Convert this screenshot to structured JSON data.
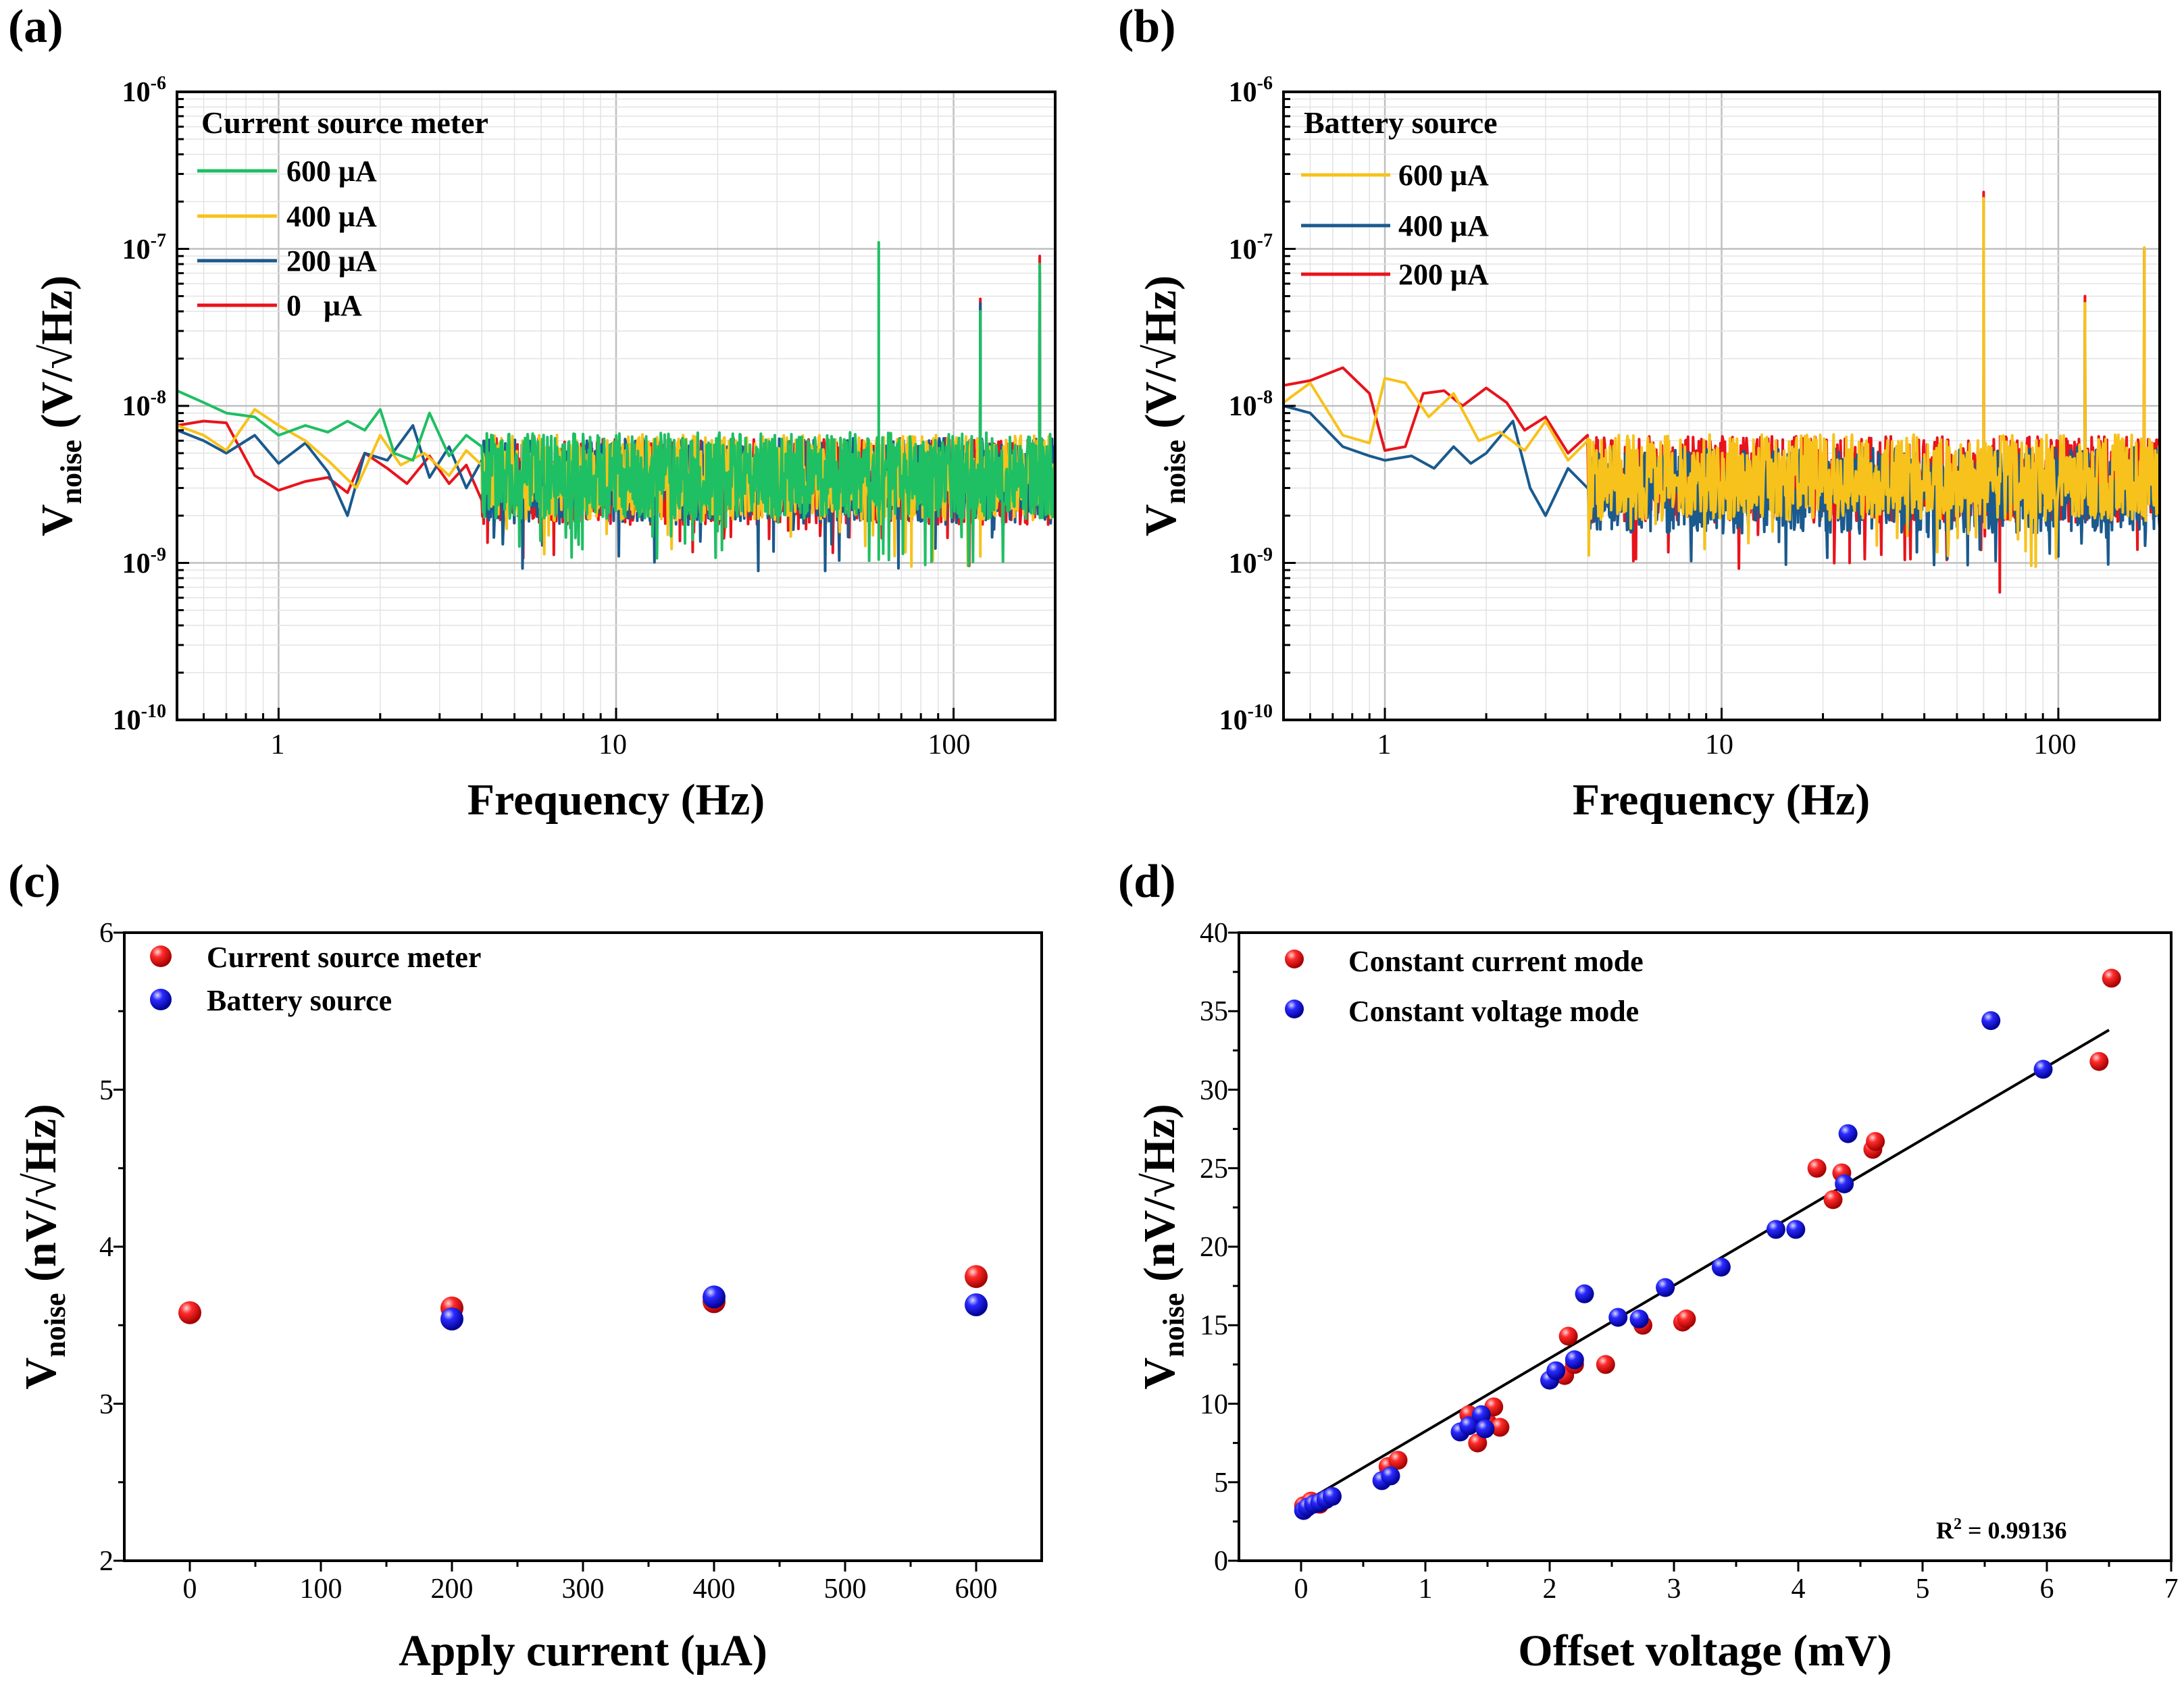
{
  "colors": {
    "green": "#1FBF63",
    "yellow": "#F7C21B",
    "blue": "#1A5A8E",
    "red": "#E8141C",
    "scatter_red": "#E8141C",
    "scatter_blue": "#1515E0",
    "grid_major": "#BFBFBF",
    "grid_minor": "#E3E3E3"
  },
  "chart_data": [
    {
      "id": "a",
      "panel_label": "(a)",
      "type": "line",
      "xscale": "log",
      "yscale": "log",
      "xlabel": "Frequency (Hz)",
      "ylabel": "V_noise (V/√Hz)",
      "ylabel_main": "V",
      "ylabel_sub": "noise",
      "ylabel_unit": " (V/√Hz)",
      "xlim": [
        0.5,
        200
      ],
      "ylim": [
        1e-10,
        1e-06
      ],
      "xticks": [
        1,
        10,
        100
      ],
      "xtick_labels": [
        "1",
        "10",
        "100"
      ],
      "yticks": [
        1e-10,
        1e-09,
        1e-08,
        1e-07,
        1e-06
      ],
      "ytick_base": [
        "10",
        "10",
        "10",
        "10",
        "10"
      ],
      "ytick_exp": [
        "-10",
        "-9",
        "-8",
        "-7",
        "-6"
      ],
      "grid": true,
      "legend_title": "Current source meter",
      "legend_position": "top-left",
      "series": [
        {
          "name": "600 μA",
          "color": "#1FBF63",
          "mean": 3.6e-09,
          "low_freq": [
            [
              0.5,
              1.25e-08
            ],
            [
              0.6,
              1.05e-08
            ],
            [
              0.7,
              9e-09
            ],
            [
              0.85,
              8.5e-09
            ],
            [
              1.0,
              6.5e-09
            ],
            [
              1.2,
              7.5e-09
            ],
            [
              1.4,
              6.8e-09
            ],
            [
              1.6,
              8e-09
            ],
            [
              1.8,
              7e-09
            ],
            [
              2.0,
              9.5e-09
            ],
            [
              2.2,
              5e-09
            ],
            [
              2.5,
              4.5e-09
            ],
            [
              2.8,
              9e-09
            ],
            [
              3.2,
              4.8e-09
            ],
            [
              3.6,
              6.5e-09
            ],
            [
              4.0,
              5.5e-09
            ]
          ],
          "spikes": [
            [
              60,
              1.1e-07
            ],
            [
              60,
              1.05e-09
            ],
            [
              120,
              4e-08
            ],
            [
              180,
              8e-08
            ]
          ]
        },
        {
          "name": "400 μA",
          "color": "#F7C21B",
          "mean": 3.5e-09,
          "low_freq": [
            [
              0.5,
              7.5e-09
            ],
            [
              0.6,
              6.5e-09
            ],
            [
              0.7,
              5.2e-09
            ],
            [
              0.85,
              9.5e-09
            ],
            [
              1.0,
              7.5e-09
            ],
            [
              1.2,
              6e-09
            ],
            [
              1.4,
              4.5e-09
            ],
            [
              1.7,
              3e-09
            ],
            [
              2.0,
              6.5e-09
            ],
            [
              2.3,
              4.2e-09
            ],
            [
              2.7,
              5e-09
            ],
            [
              3.2,
              3.6e-09
            ],
            [
              3.6,
              5.2e-09
            ],
            [
              4.0,
              4.2e-09
            ]
          ],
          "spikes": [
            [
              75,
              9.5e-10
            ],
            [
              120,
              1.1e-09
            ]
          ]
        },
        {
          "name": "200 μA",
          "color": "#1A5A8E",
          "mean": 3.3e-09,
          "low_freq": [
            [
              0.5,
              7e-09
            ],
            [
              0.6,
              6e-09
            ],
            [
              0.7,
              5e-09
            ],
            [
              0.85,
              6.5e-09
            ],
            [
              1.0,
              4.3e-09
            ],
            [
              1.2,
              5.8e-09
            ],
            [
              1.4,
              3.8e-09
            ],
            [
              1.6,
              2e-09
            ],
            [
              1.8,
              5e-09
            ],
            [
              2.1,
              4.5e-09
            ],
            [
              2.5,
              7.5e-09
            ],
            [
              2.8,
              3.5e-09
            ],
            [
              3.2,
              5.5e-09
            ],
            [
              3.6,
              3e-09
            ],
            [
              4.0,
              4.5e-09
            ]
          ],
          "spikes": [
            [
              120,
              4.5e-08
            ],
            [
              180,
              7e-08
            ]
          ]
        },
        {
          "name": "0   μA",
          "color": "#E8141C",
          "mean": 3.3e-09,
          "low_freq": [
            [
              0.5,
              7.5e-09
            ],
            [
              0.6,
              8e-09
            ],
            [
              0.7,
              7.8e-09
            ],
            [
              0.85,
              3.6e-09
            ],
            [
              1.0,
              2.9e-09
            ],
            [
              1.2,
              3.3e-09
            ],
            [
              1.4,
              3.5e-09
            ],
            [
              1.6,
              2.8e-09
            ],
            [
              1.8,
              5e-09
            ],
            [
              2.1,
              4e-09
            ],
            [
              2.4,
              3.2e-09
            ],
            [
              2.8,
              4.8e-09
            ],
            [
              3.2,
              3.2e-09
            ],
            [
              3.6,
              4.2e-09
            ],
            [
              4.0,
              2.5e-09
            ]
          ],
          "spikes": [
            [
              120,
              4.8e-08
            ],
            [
              180,
              9e-08
            ]
          ]
        }
      ]
    },
    {
      "id": "b",
      "panel_label": "(b)",
      "type": "line",
      "xscale": "log",
      "yscale": "log",
      "xlabel": "Frequency (Hz)",
      "ylabel": "V_noise (V/√Hz)",
      "ylabel_main": "V",
      "ylabel_sub": "noise",
      "ylabel_unit": " (V/√Hz)",
      "xlim": [
        0.5,
        200
      ],
      "ylim": [
        1e-10,
        1e-06
      ],
      "xticks": [
        1,
        10,
        100
      ],
      "xtick_labels": [
        "1",
        "10",
        "100"
      ],
      "yticks": [
        1e-10,
        1e-09,
        1e-08,
        1e-07,
        1e-06
      ],
      "ytick_base": [
        "10",
        "10",
        "10",
        "10",
        "10"
      ],
      "ytick_exp": [
        "-10",
        "-9",
        "-8",
        "-7",
        "-6"
      ],
      "grid": true,
      "legend_title": "Battery source",
      "legend_position": "top-left",
      "series": [
        {
          "name": "200 μA",
          "color": "#E8141C",
          "mean": 3.4e-09,
          "low_freq": [
            [
              0.5,
              1.35e-08
            ],
            [
              0.6,
              1.45e-08
            ],
            [
              0.75,
              1.75e-08
            ],
            [
              0.9,
              1.2e-08
            ],
            [
              1.0,
              5.2e-09
            ],
            [
              1.15,
              5.5e-09
            ],
            [
              1.3,
              1.2e-08
            ],
            [
              1.5,
              1.25e-08
            ],
            [
              1.7,
              1e-08
            ],
            [
              2.0,
              1.3e-08
            ],
            [
              2.3,
              1.05e-08
            ],
            [
              2.6,
              7e-09
            ],
            [
              3.0,
              8.5e-09
            ],
            [
              3.5,
              5e-09
            ],
            [
              4.0,
              6.5e-09
            ]
          ],
          "spikes": [
            [
              60,
              2.3e-07
            ],
            [
              120,
              5e-08
            ],
            [
              180,
              1e-07
            ],
            [
              24,
              1e-09
            ],
            [
              67,
              6.5e-10
            ]
          ]
        },
        {
          "name": "400 μA",
          "color": "#1A5A8E",
          "mean": 2.9e-09,
          "low_freq": [
            [
              0.5,
              1e-08
            ],
            [
              0.6,
              9e-09
            ],
            [
              0.75,
              5.5e-09
            ],
            [
              0.9,
              4.8e-09
            ],
            [
              1.0,
              4.5e-09
            ],
            [
              1.2,
              4.8e-09
            ],
            [
              1.4,
              4e-09
            ],
            [
              1.6,
              5.5e-09
            ],
            [
              1.8,
              4.3e-09
            ],
            [
              2.0,
              5e-09
            ],
            [
              2.4,
              8e-09
            ],
            [
              2.7,
              3e-09
            ],
            [
              3.0,
              2e-09
            ],
            [
              3.5,
              4e-09
            ],
            [
              4.0,
              3e-09
            ]
          ],
          "spikes": [
            [
              60,
              1.5e-08
            ],
            [
              120,
              3.5e-08
            ],
            [
              100,
              1.1e-09
            ]
          ]
        },
        {
          "name": "600 μA",
          "color": "#F7C21B",
          "mean": 3.5e-09,
          "low_freq": [
            [
              0.5,
              1.05e-08
            ],
            [
              0.6,
              1.4e-08
            ],
            [
              0.75,
              6.5e-09
            ],
            [
              0.9,
              5.8e-09
            ],
            [
              1.0,
              1.5e-08
            ],
            [
              1.15,
              1.4e-08
            ],
            [
              1.35,
              8.5e-09
            ],
            [
              1.6,
              1.2e-08
            ],
            [
              1.9,
              6e-09
            ],
            [
              2.2,
              6.8e-09
            ],
            [
              2.6,
              5.2e-09
            ],
            [
              3.0,
              8e-09
            ],
            [
              3.5,
              4.5e-09
            ],
            [
              4.0,
              6e-09
            ]
          ],
          "spikes": [
            [
              60,
              2.1e-07
            ],
            [
              120,
              4.5e-08
            ],
            [
              180,
              1.02e-07
            ]
          ]
        }
      ]
    },
    {
      "id": "c",
      "panel_label": "(c)",
      "type": "scatter",
      "xlabel": "Apply current (μA)",
      "ylabel": "V_noise (nV/√Hz)",
      "ylabel_main": "V",
      "ylabel_sub": "noise",
      "ylabel_unit": " (nV/√Hz)",
      "xlim": [
        -50,
        650
      ],
      "ylim": [
        2,
        6
      ],
      "xticks": [
        0,
        100,
        200,
        300,
        400,
        500,
        600
      ],
      "xtick_labels": [
        "0",
        "100",
        "200",
        "300",
        "400",
        "500",
        "600"
      ],
      "yticks": [
        2,
        3,
        4,
        5,
        6
      ],
      "ytick_labels": [
        "2",
        "3",
        "4",
        "5",
        "6"
      ],
      "grid": false,
      "legend_position": "top-left",
      "series": [
        {
          "name": "Current source meter",
          "color": "#E8141C",
          "x": [
            0,
            200,
            400,
            600
          ],
          "y": [
            3.58,
            3.61,
            3.65,
            3.81
          ]
        },
        {
          "name": "Battery source",
          "color": "#1515E0",
          "x": [
            200,
            400,
            600
          ],
          "y": [
            3.54,
            3.68,
            3.63
          ]
        }
      ]
    },
    {
      "id": "d",
      "panel_label": "(d)",
      "type": "scatter",
      "xlabel": "Offset voltage (mV)",
      "ylabel": "V_noise (nV/√Hz)",
      "ylabel_main": "V",
      "ylabel_sub": "noise",
      "ylabel_unit": " (nV/√Hz)",
      "xlim": [
        -0.5,
        7
      ],
      "ylim": [
        0,
        40
      ],
      "xticks": [
        0,
        1,
        2,
        3,
        4,
        5,
        6,
        7
      ],
      "xtick_labels": [
        "0",
        "1",
        "2",
        "3",
        "4",
        "5",
        "6",
        "7"
      ],
      "yticks": [
        0,
        5,
        10,
        15,
        20,
        25,
        30,
        35,
        40
      ],
      "ytick_labels": [
        "0",
        "5",
        "10",
        "15",
        "20",
        "25",
        "30",
        "35",
        "40"
      ],
      "grid": false,
      "legend_position": "top-left",
      "annotation_prefix": "R",
      "annotation_sup": "2",
      "annotation_value": " = 0.99136",
      "fit_line": {
        "x": [
          0,
          6.5
        ],
        "y": [
          3.6,
          33.8
        ]
      },
      "series": [
        {
          "name": "Constant current mode",
          "color": "#E8141C",
          "x": [
            0.02,
            0.08,
            0.15,
            0.7,
            0.78,
            1.35,
            1.42,
            1.5,
            1.55,
            1.6,
            2.12,
            2.15,
            2.2,
            2.45,
            2.75,
            3.07,
            3.1,
            4.15,
            4.28,
            4.35,
            4.6,
            4.62,
            6.42,
            6.52
          ],
          "y": [
            3.5,
            3.8,
            3.6,
            6.0,
            6.4,
            9.3,
            7.5,
            8.8,
            9.8,
            8.5,
            11.8,
            14.3,
            12.5,
            12.5,
            15.0,
            15.2,
            15.4,
            25.0,
            23.0,
            24.7,
            26.2,
            26.7,
            31.8,
            37.1
          ]
        },
        {
          "name": "Constant voltage mode",
          "color": "#1515E0",
          "x": [
            0.02,
            0.05,
            0.1,
            0.15,
            0.2,
            0.25,
            0.65,
            0.72,
            1.28,
            1.35,
            1.45,
            1.48,
            2.0,
            2.05,
            2.2,
            2.28,
            2.55,
            2.72,
            2.93,
            3.38,
            3.82,
            3.98,
            4.37,
            4.4,
            5.55,
            5.97
          ],
          "y": [
            3.2,
            3.4,
            3.6,
            3.7,
            3.9,
            4.1,
            5.1,
            5.4,
            8.2,
            8.6,
            9.3,
            8.4,
            11.5,
            12.1,
            12.8,
            17.0,
            15.5,
            15.4,
            17.4,
            18.7,
            21.1,
            21.1,
            24.0,
            27.2,
            34.4,
            31.3
          ]
        }
      ]
    }
  ]
}
